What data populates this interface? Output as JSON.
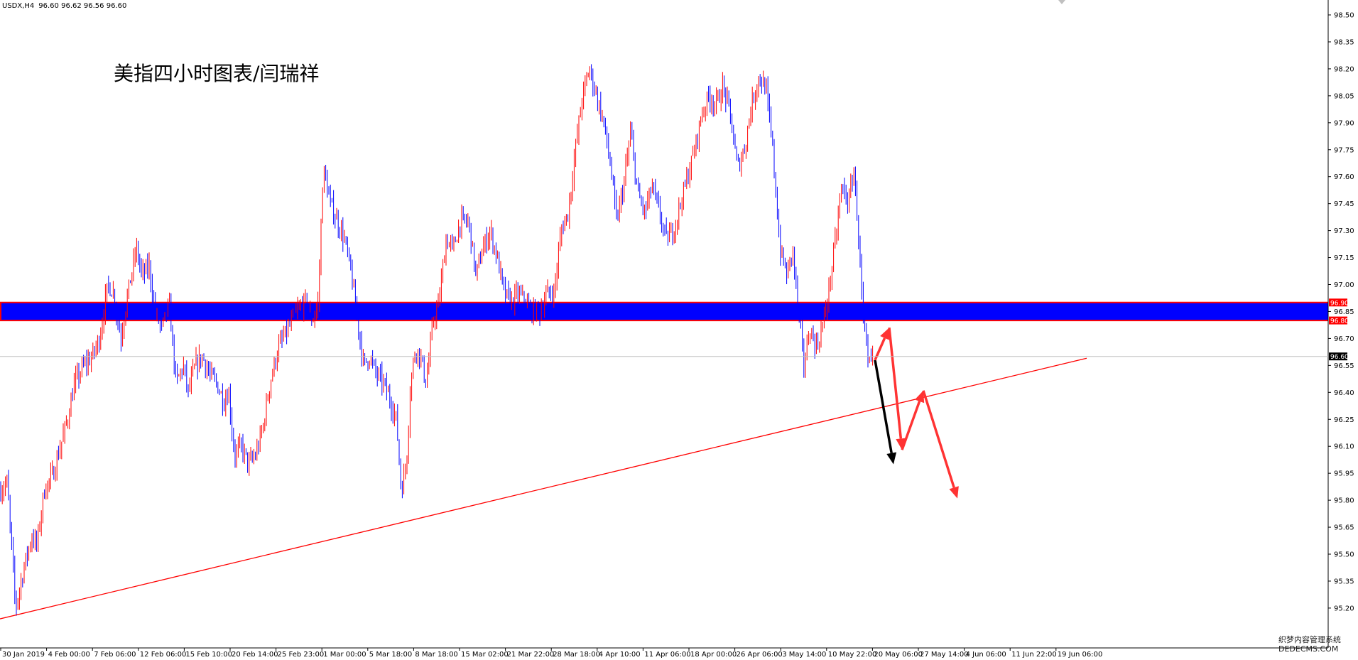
{
  "header": {
    "symbol": "USDX,H4",
    "ohlc": "96.60 96.62 96.56 96.60"
  },
  "title": "美指四小时图表/闫瑞祥",
  "watermark": {
    "line1": "织梦内容管理系统",
    "line2": "DEDECMS.COM"
  },
  "chart_data": {
    "type": "candlestick",
    "symbol": "USDX",
    "timeframe": "H4",
    "ylim": [
      95.07,
      98.65
    ],
    "y_ticks": [
      "98.50",
      "98.35",
      "98.20",
      "98.05",
      "97.90",
      "97.75",
      "97.60",
      "97.45",
      "97.30",
      "97.15",
      "97.00",
      "96.85",
      "96.70",
      "96.55",
      "96.40",
      "96.25",
      "96.10",
      "95.95",
      "95.80",
      "95.65",
      "95.50",
      "95.35",
      "95.20"
    ],
    "x_ticks": [
      "30 Jan 2019",
      "4 Feb 00:00",
      "7 Feb 06:00",
      "12 Feb 06:00",
      "15 Feb 10:00",
      "20 Feb 14:00",
      "25 Feb 23:00",
      "1 Mar 00:00",
      "5 Mar 18:00",
      "8 Mar 18:00",
      "15 Mar 02:00",
      "21 Mar 22:00",
      "28 Mar 18:00",
      "4 Apr 10:00",
      "11 Apr 06:00",
      "18 Apr 00:00",
      "26 Apr 06:00",
      "3 May 14:00",
      "10 May 22:00",
      "20 May 06:00",
      "27 May 14:00",
      "4 Jun 06:00",
      "11 Jun 22:00",
      "19 Jun 06:00"
    ],
    "price_path": [
      [
        0,
        95.85
      ],
      [
        10,
        95.9
      ],
      [
        22,
        95.2
      ],
      [
        35,
        95.45
      ],
      [
        45,
        95.6
      ],
      [
        52,
        95.55
      ],
      [
        62,
        95.85
      ],
      [
        75,
        95.95
      ],
      [
        85,
        96.1
      ],
      [
        95,
        96.25
      ],
      [
        105,
        96.45
      ],
      [
        118,
        96.55
      ],
      [
        130,
        96.6
      ],
      [
        140,
        96.7
      ],
      [
        152,
        97.0
      ],
      [
        160,
        96.95
      ],
      [
        170,
        96.7
      ],
      [
        180,
        96.95
      ],
      [
        192,
        97.2
      ],
      [
        200,
        97.05
      ],
      [
        210,
        97.1
      ],
      [
        218,
        96.85
      ],
      [
        228,
        96.75
      ],
      [
        238,
        96.9
      ],
      [
        248,
        96.45
      ],
      [
        258,
        96.55
      ],
      [
        265,
        96.4
      ],
      [
        275,
        96.55
      ],
      [
        285,
        96.6
      ],
      [
        295,
        96.5
      ],
      [
        305,
        96.45
      ],
      [
        315,
        96.35
      ],
      [
        322,
        96.4
      ],
      [
        330,
        96.05
      ],
      [
        340,
        96.1
      ],
      [
        350,
        96.0
      ],
      [
        360,
        96.05
      ],
      [
        370,
        96.2
      ],
      [
        380,
        96.45
      ],
      [
        392,
        96.65
      ],
      [
        405,
        96.75
      ],
      [
        418,
        96.85
      ],
      [
        430,
        96.9
      ],
      [
        440,
        96.8
      ],
      [
        448,
        96.9
      ],
      [
        455,
        97.65
      ],
      [
        465,
        97.45
      ],
      [
        475,
        97.35
      ],
      [
        485,
        97.25
      ],
      [
        495,
        97.05
      ],
      [
        505,
        96.75
      ],
      [
        512,
        96.55
      ],
      [
        520,
        96.6
      ],
      [
        530,
        96.5
      ],
      [
        540,
        96.45
      ],
      [
        550,
        96.35
      ],
      [
        558,
        96.25
      ],
      [
        565,
        95.85
      ],
      [
        572,
        96.0
      ],
      [
        578,
        96.45
      ],
      [
        585,
        96.65
      ],
      [
        592,
        96.6
      ],
      [
        600,
        96.45
      ],
      [
        610,
        96.8
      ],
      [
        618,
        96.9
      ],
      [
        628,
        97.25
      ],
      [
        638,
        97.2
      ],
      [
        648,
        97.35
      ],
      [
        660,
        97.35
      ],
      [
        670,
        97.05
      ],
      [
        680,
        97.2
      ],
      [
        690,
        97.3
      ],
      [
        700,
        97.15
      ],
      [
        710,
        96.95
      ],
      [
        720,
        96.9
      ],
      [
        730,
        96.95
      ],
      [
        740,
        96.9
      ],
      [
        750,
        96.85
      ],
      [
        760,
        96.85
      ],
      [
        770,
        96.95
      ],
      [
        780,
        96.95
      ],
      [
        790,
        97.3
      ],
      [
        800,
        97.4
      ],
      [
        810,
        97.75
      ],
      [
        820,
        98.05
      ],
      [
        830,
        98.2
      ],
      [
        840,
        98.05
      ],
      [
        850,
        97.9
      ],
      [
        860,
        97.65
      ],
      [
        868,
        97.35
      ],
      [
        878,
        97.55
      ],
      [
        888,
        97.85
      ],
      [
        898,
        97.5
      ],
      [
        908,
        97.4
      ],
      [
        918,
        97.55
      ],
      [
        928,
        97.4
      ],
      [
        938,
        97.25
      ],
      [
        948,
        97.3
      ],
      [
        958,
        97.45
      ],
      [
        968,
        97.6
      ],
      [
        978,
        97.75
      ],
      [
        988,
        97.95
      ],
      [
        998,
        98.05
      ],
      [
        1008,
        98.0
      ],
      [
        1018,
        98.1
      ],
      [
        1028,
        97.95
      ],
      [
        1038,
        97.65
      ],
      [
        1048,
        97.75
      ],
      [
        1058,
        98.0
      ],
      [
        1068,
        98.15
      ],
      [
        1078,
        98.1
      ],
      [
        1088,
        97.75
      ],
      [
        1098,
        97.2
      ],
      [
        1108,
        97.05
      ],
      [
        1116,
        97.2
      ],
      [
        1124,
        96.85
      ],
      [
        1132,
        96.55
      ],
      [
        1140,
        96.75
      ],
      [
        1150,
        96.65
      ],
      [
        1160,
        96.8
      ],
      [
        1168,
        97.0
      ],
      [
        1178,
        97.3
      ],
      [
        1185,
        97.55
      ],
      [
        1195,
        97.45
      ],
      [
        1202,
        97.65
      ],
      [
        1210,
        97.2
      ],
      [
        1215,
        96.8
      ],
      [
        1222,
        96.55
      ],
      [
        1230,
        96.6
      ]
    ],
    "support_zone": {
      "top": 96.9,
      "bottom": 96.8,
      "label_top": "96.90",
      "label_bottom": "96.80"
    },
    "current_price": {
      "value": 96.6,
      "label": "96.60"
    },
    "trendline": {
      "start": [
        0,
        95.14
      ],
      "end": [
        1530,
        96.59
      ]
    },
    "arrows": [
      {
        "color": "#000000",
        "points": [
          [
            1232,
            96.58
          ],
          [
            1258,
            96.0
          ]
        ]
      },
      {
        "color": "#ff3333",
        "points": [
          [
            1232,
            96.58
          ],
          [
            1252,
            96.76
          ],
          [
            1270,
            96.08
          ],
          [
            1300,
            96.41
          ],
          [
            1348,
            95.81
          ]
        ]
      }
    ],
    "colors": {
      "bull": "#ff0000",
      "bear": "#0000ff",
      "zone": "#0000ff",
      "zone_border": "#ff0000",
      "trendline": "#ff0000",
      "arrow_red": "#ff3333",
      "arrow_black": "#000000"
    }
  }
}
